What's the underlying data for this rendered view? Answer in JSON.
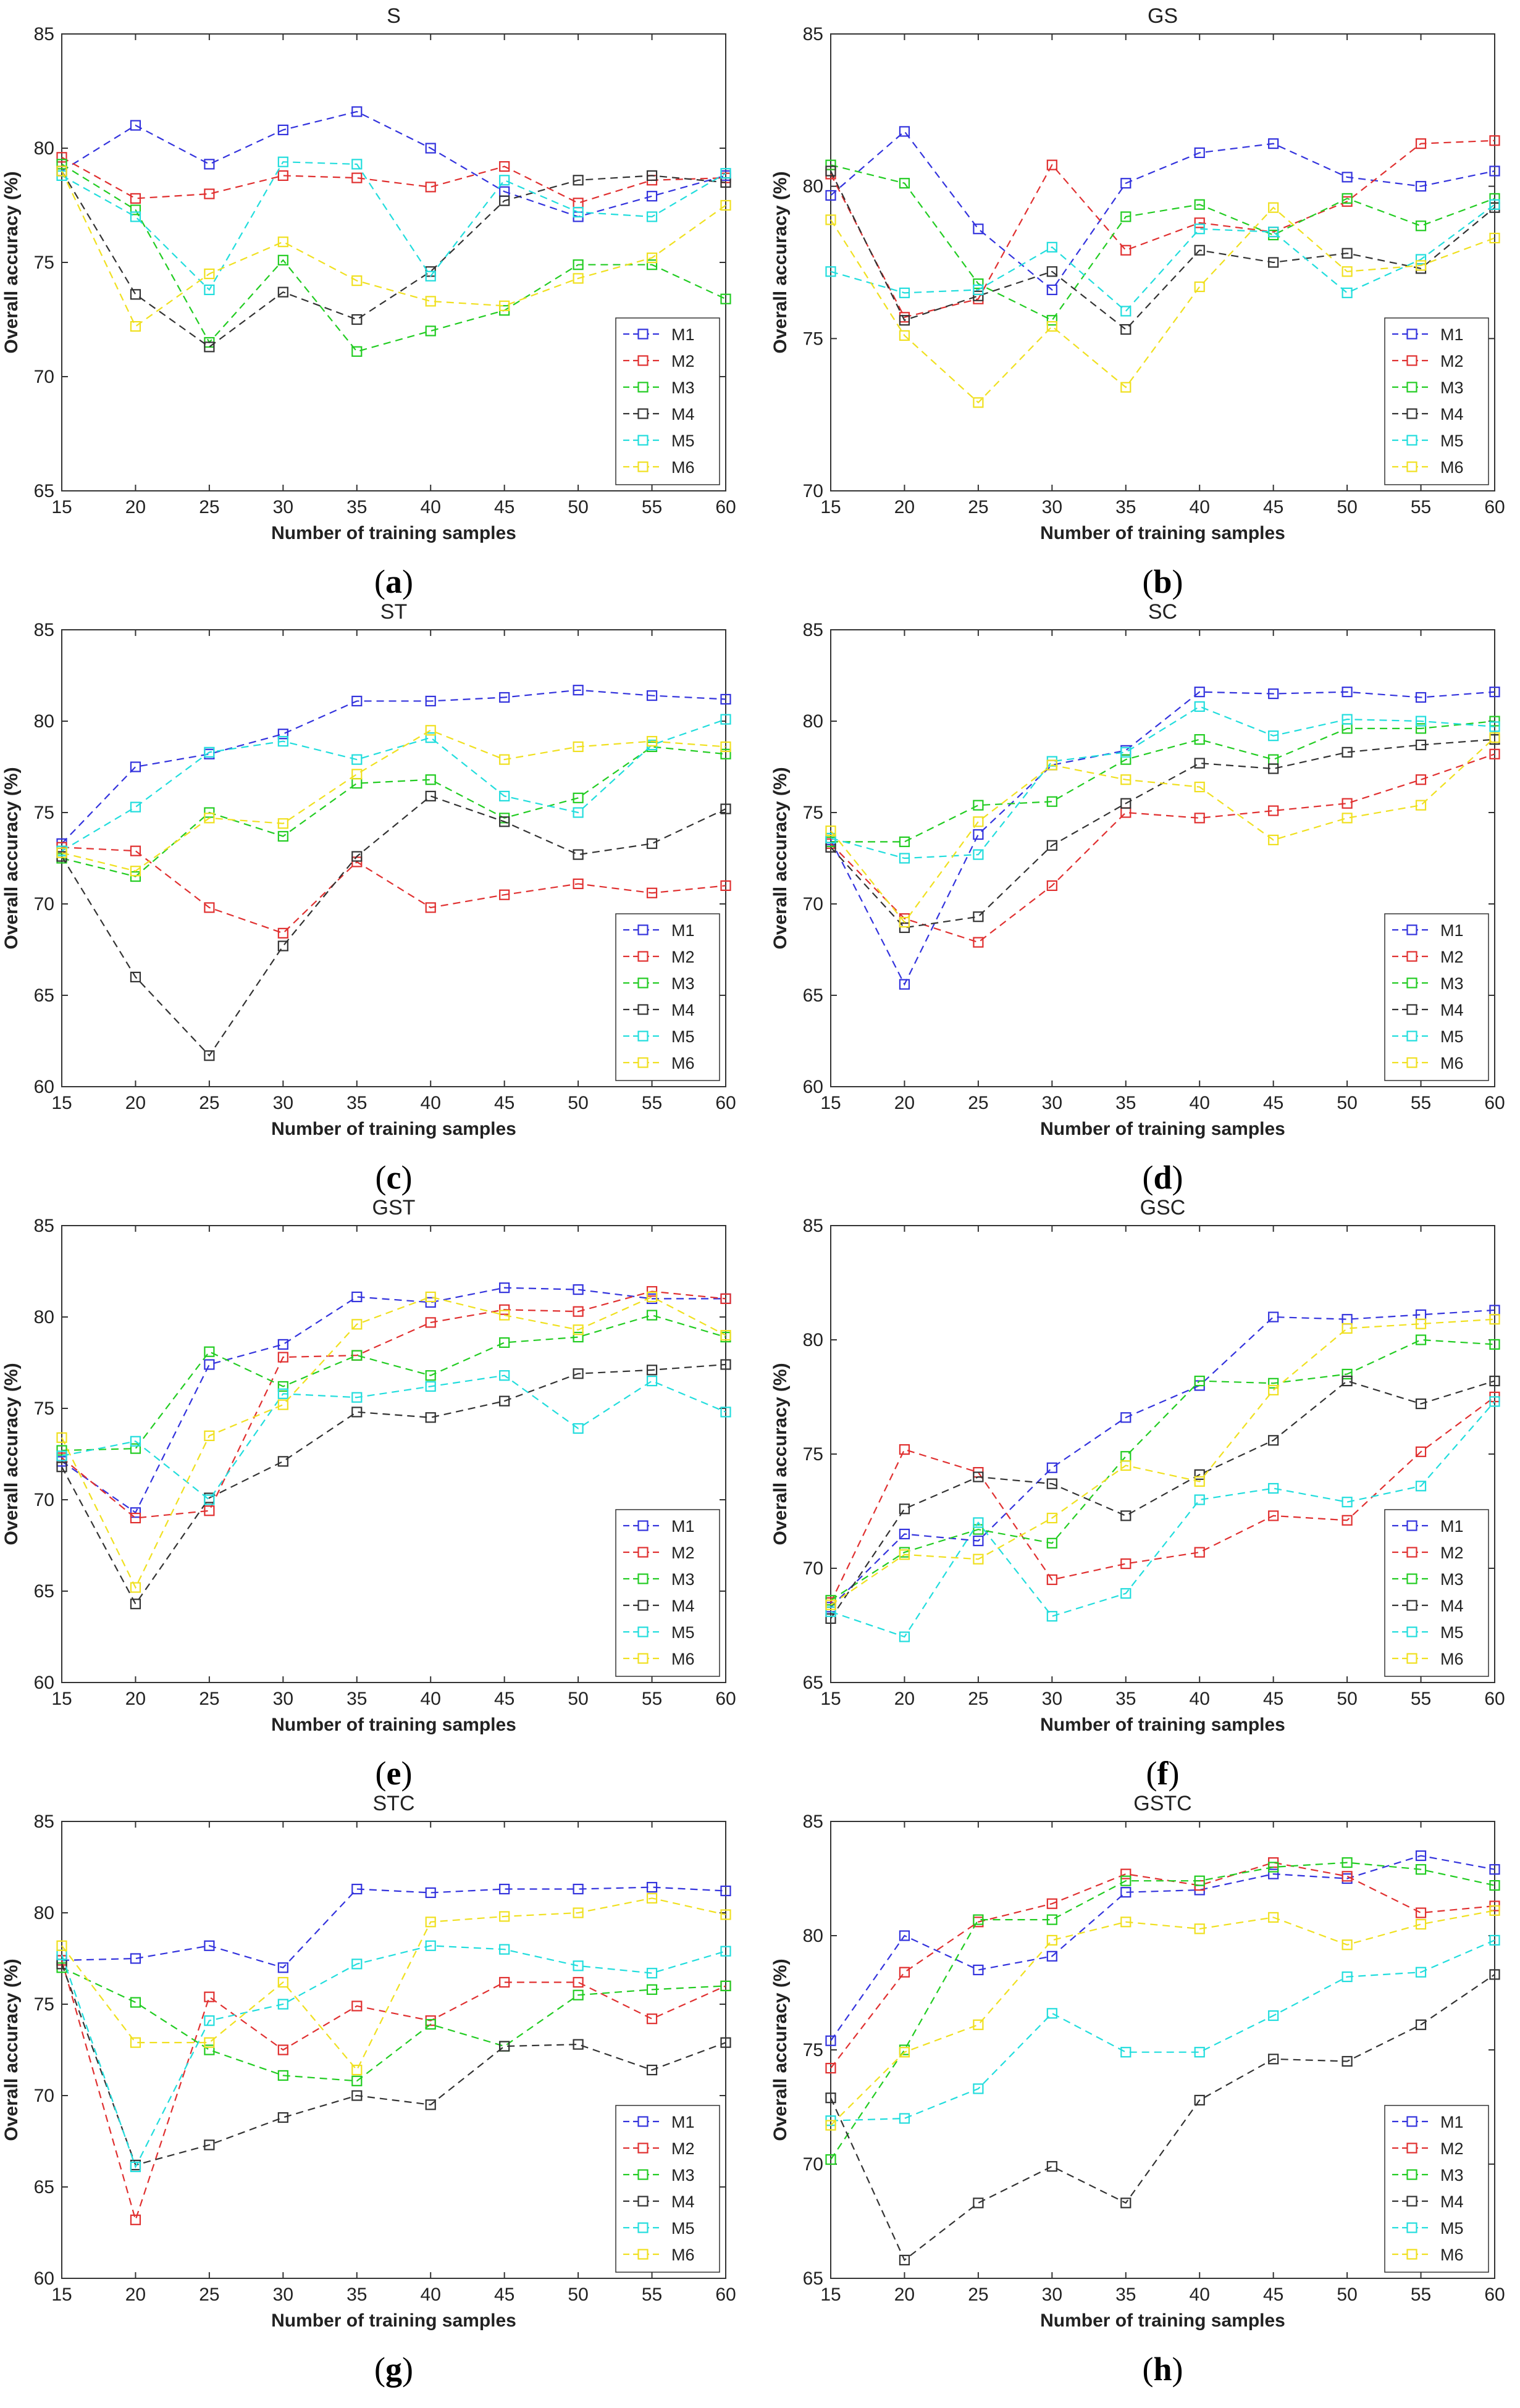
{
  "figure": {
    "xlabel": "Number of training samples",
    "ylabel": "Overall accuracy (%)"
  },
  "colors": {
    "M1": "#3333dd",
    "M2": "#e03030",
    "M3": "#22cc22",
    "M4": "#333333",
    "M5": "#22dddd",
    "M6": "#f0e020"
  },
  "chart_data": [
    {
      "type": "line",
      "panel_label": "a",
      "title": "S",
      "xlabel": "Number of training samples",
      "ylabel": "Overall accuracy (%)",
      "x": [
        15,
        20,
        25,
        30,
        35,
        40,
        45,
        50,
        55,
        60
      ],
      "xlim": [
        15,
        60
      ],
      "ylim": [
        65,
        85
      ],
      "yticks": [
        65,
        70,
        75,
        80,
        85
      ],
      "legend": "bottom-right",
      "series": [
        {
          "name": "M1",
          "values": [
            79.0,
            81.0,
            79.3,
            80.8,
            81.6,
            80.0,
            78.1,
            77.0,
            77.9,
            78.8
          ]
        },
        {
          "name": "M2",
          "values": [
            79.6,
            77.8,
            78.0,
            78.8,
            78.7,
            78.3,
            79.2,
            77.6,
            78.6,
            78.7
          ]
        },
        {
          "name": "M3",
          "values": [
            79.3,
            77.3,
            71.5,
            75.1,
            71.1,
            72.0,
            72.9,
            74.9,
            74.9,
            73.4
          ]
        },
        {
          "name": "M4",
          "values": [
            79.0,
            73.6,
            71.3,
            73.7,
            72.5,
            74.6,
            77.7,
            78.6,
            78.8,
            78.5
          ]
        },
        {
          "name": "M5",
          "values": [
            78.8,
            77.0,
            73.8,
            79.4,
            79.3,
            74.4,
            78.6,
            77.2,
            77.0,
            78.9
          ]
        },
        {
          "name": "M6",
          "values": [
            79.0,
            72.2,
            74.5,
            75.9,
            74.2,
            73.3,
            73.1,
            74.3,
            75.2,
            77.5
          ]
        }
      ]
    },
    {
      "type": "line",
      "panel_label": "b",
      "title": "GS",
      "xlabel": "Number of training samples",
      "ylabel": "Overall accuracy (%)",
      "x": [
        15,
        20,
        25,
        30,
        35,
        40,
        45,
        50,
        55,
        60
      ],
      "xlim": [
        15,
        60
      ],
      "ylim": [
        70,
        85
      ],
      "yticks": [
        70,
        75,
        80,
        85
      ],
      "legend": "bottom-right",
      "series": [
        {
          "name": "M1",
          "values": [
            79.7,
            81.8,
            78.6,
            76.6,
            80.1,
            81.1,
            81.4,
            80.3,
            80.0,
            80.5
          ]
        },
        {
          "name": "M2",
          "values": [
            80.4,
            75.7,
            76.3,
            80.7,
            77.9,
            78.8,
            78.5,
            79.5,
            81.4,
            81.5
          ]
        },
        {
          "name": "M3",
          "values": [
            80.7,
            80.1,
            76.8,
            75.6,
            79.0,
            79.4,
            78.4,
            79.6,
            78.7,
            79.6
          ]
        },
        {
          "name": "M4",
          "values": [
            80.5,
            75.6,
            76.4,
            77.2,
            75.3,
            77.9,
            77.5,
            77.8,
            77.3,
            79.3
          ]
        },
        {
          "name": "M5",
          "values": [
            77.2,
            76.5,
            76.6,
            78.0,
            75.9,
            78.6,
            78.5,
            76.5,
            77.6,
            79.4
          ]
        },
        {
          "name": "M6",
          "values": [
            78.9,
            75.1,
            72.9,
            75.4,
            73.4,
            76.7,
            79.3,
            77.2,
            77.4,
            78.3
          ]
        }
      ]
    },
    {
      "type": "line",
      "panel_label": "c",
      "title": "ST",
      "xlabel": "Number of training samples",
      "ylabel": "Overall accuracy (%)",
      "x": [
        15,
        20,
        25,
        30,
        35,
        40,
        45,
        50,
        55,
        60
      ],
      "xlim": [
        15,
        60
      ],
      "ylim": [
        60,
        85
      ],
      "yticks": [
        60,
        65,
        70,
        75,
        80,
        85
      ],
      "legend": "bottom-right",
      "series": [
        {
          "name": "M1",
          "values": [
            73.3,
            77.5,
            78.2,
            79.3,
            81.1,
            81.1,
            81.3,
            81.7,
            81.4,
            81.2
          ]
        },
        {
          "name": "M2",
          "values": [
            73.1,
            72.9,
            69.8,
            68.4,
            72.3,
            69.8,
            70.5,
            71.1,
            70.6,
            71.0
          ]
        },
        {
          "name": "M3",
          "values": [
            72.5,
            71.5,
            75.0,
            73.7,
            76.6,
            76.8,
            74.7,
            75.8,
            78.6,
            78.2
          ]
        },
        {
          "name": "M4",
          "values": [
            72.6,
            66.0,
            61.7,
            67.7,
            72.6,
            75.9,
            74.5,
            72.7,
            73.3,
            75.2
          ]
        },
        {
          "name": "M5",
          "values": [
            72.9,
            75.3,
            78.3,
            78.9,
            77.9,
            79.1,
            75.9,
            75.0,
            78.7,
            80.1
          ]
        },
        {
          "name": "M6",
          "values": [
            72.8,
            71.8,
            74.7,
            74.4,
            77.1,
            79.5,
            77.9,
            78.6,
            78.9,
            78.6
          ]
        }
      ]
    },
    {
      "type": "line",
      "panel_label": "d",
      "title": "SC",
      "xlabel": "Number of training samples",
      "ylabel": "Overall accuracy (%)",
      "x": [
        15,
        20,
        25,
        30,
        35,
        40,
        45,
        50,
        55,
        60
      ],
      "xlim": [
        15,
        60
      ],
      "ylim": [
        60,
        85
      ],
      "yticks": [
        60,
        65,
        70,
        75,
        80,
        85
      ],
      "legend": "bottom-right",
      "series": [
        {
          "name": "M1",
          "values": [
            73.5,
            65.6,
            73.8,
            77.6,
            78.4,
            81.6,
            81.5,
            81.6,
            81.3,
            81.6
          ]
        },
        {
          "name": "M2",
          "values": [
            73.3,
            69.2,
            67.9,
            71.0,
            75.0,
            74.7,
            75.1,
            75.5,
            76.8,
            78.2
          ]
        },
        {
          "name": "M3",
          "values": [
            73.4,
            73.4,
            75.4,
            75.6,
            77.9,
            79.0,
            77.9,
            79.6,
            79.6,
            80.0
          ]
        },
        {
          "name": "M4",
          "values": [
            73.1,
            68.7,
            69.3,
            73.2,
            75.5,
            77.7,
            77.4,
            78.3,
            78.7,
            79.0
          ]
        },
        {
          "name": "M5",
          "values": [
            73.6,
            72.5,
            72.7,
            77.8,
            78.3,
            80.8,
            79.2,
            80.1,
            80.0,
            79.7
          ]
        },
        {
          "name": "M6",
          "values": [
            74.0,
            69.0,
            74.5,
            77.6,
            76.8,
            76.4,
            73.5,
            74.7,
            75.4,
            79.1
          ]
        }
      ]
    },
    {
      "type": "line",
      "panel_label": "e",
      "title": "GST",
      "xlabel": "Number of training samples",
      "ylabel": "Overall accuracy (%)",
      "x": [
        15,
        20,
        25,
        30,
        35,
        40,
        45,
        50,
        55,
        60
      ],
      "xlim": [
        15,
        60
      ],
      "ylim": [
        60,
        85
      ],
      "yticks": [
        60,
        65,
        70,
        75,
        80,
        85
      ],
      "legend": "bottom-right",
      "series": [
        {
          "name": "M1",
          "values": [
            72.1,
            69.3,
            77.4,
            78.5,
            81.1,
            80.8,
            81.6,
            81.5,
            81.0,
            81.0
          ]
        },
        {
          "name": "M2",
          "values": [
            72.3,
            69.0,
            69.4,
            77.8,
            77.9,
            79.7,
            80.4,
            80.3,
            81.4,
            81.0
          ]
        },
        {
          "name": "M3",
          "values": [
            72.7,
            72.8,
            78.1,
            76.2,
            77.9,
            76.8,
            78.6,
            78.9,
            80.1,
            78.9
          ]
        },
        {
          "name": "M4",
          "values": [
            71.8,
            64.3,
            70.1,
            72.1,
            74.8,
            74.5,
            75.4,
            76.9,
            77.1,
            77.4
          ]
        },
        {
          "name": "M5",
          "values": [
            72.4,
            73.2,
            70.0,
            75.8,
            75.6,
            76.2,
            76.8,
            73.9,
            76.5,
            74.8
          ]
        },
        {
          "name": "M6",
          "values": [
            73.4,
            65.2,
            73.5,
            75.2,
            79.6,
            81.1,
            80.1,
            79.3,
            81.1,
            79.0
          ]
        }
      ]
    },
    {
      "type": "line",
      "panel_label": "f",
      "title": "GSC",
      "xlabel": "Number of training samples",
      "ylabel": "Overall accuracy (%)",
      "x": [
        15,
        20,
        25,
        30,
        35,
        40,
        45,
        50,
        55,
        60
      ],
      "xlim": [
        15,
        60
      ],
      "ylim": [
        65,
        85
      ],
      "yticks": [
        65,
        70,
        75,
        80,
        85
      ],
      "legend": "bottom-right",
      "series": [
        {
          "name": "M1",
          "values": [
            68.3,
            71.5,
            71.2,
            74.4,
            76.6,
            78.0,
            81.0,
            80.9,
            81.1,
            81.3
          ]
        },
        {
          "name": "M2",
          "values": [
            68.5,
            75.2,
            74.2,
            69.5,
            70.2,
            70.7,
            72.3,
            72.1,
            75.1,
            77.5
          ]
        },
        {
          "name": "M3",
          "values": [
            68.6,
            70.7,
            71.7,
            71.1,
            74.9,
            78.2,
            78.1,
            78.5,
            80.0,
            79.8
          ]
        },
        {
          "name": "M4",
          "values": [
            67.8,
            72.6,
            74.0,
            73.7,
            72.3,
            74.1,
            75.6,
            78.2,
            77.2,
            78.2
          ]
        },
        {
          "name": "M5",
          "values": [
            68.1,
            67.0,
            72.0,
            67.9,
            68.9,
            73.0,
            73.5,
            72.9,
            73.6,
            77.3
          ]
        },
        {
          "name": "M6",
          "values": [
            68.4,
            70.6,
            70.4,
            72.2,
            74.5,
            73.8,
            77.8,
            80.5,
            80.7,
            80.9
          ]
        }
      ]
    },
    {
      "type": "line",
      "panel_label": "g",
      "title": "STC",
      "xlabel": "Number of training samples",
      "ylabel": "Overall accuracy (%)",
      "x": [
        15,
        20,
        25,
        30,
        35,
        40,
        45,
        50,
        55,
        60
      ],
      "xlim": [
        15,
        60
      ],
      "ylim": [
        60,
        85
      ],
      "yticks": [
        60,
        65,
        70,
        75,
        80,
        85
      ],
      "legend": "bottom-right",
      "series": [
        {
          "name": "M1",
          "values": [
            77.4,
            77.5,
            78.2,
            77.0,
            81.3,
            81.1,
            81.3,
            81.3,
            81.4,
            81.2
          ]
        },
        {
          "name": "M2",
          "values": [
            77.4,
            63.2,
            75.4,
            72.5,
            74.9,
            74.1,
            76.2,
            76.2,
            74.2,
            76.0
          ]
        },
        {
          "name": "M3",
          "values": [
            77.0,
            75.1,
            72.5,
            71.1,
            70.8,
            73.9,
            72.7,
            75.5,
            75.8,
            76.0
          ]
        },
        {
          "name": "M4",
          "values": [
            77.2,
            66.2,
            67.3,
            68.8,
            70.0,
            69.5,
            72.7,
            72.8,
            71.4,
            72.9
          ]
        },
        {
          "name": "M5",
          "values": [
            77.7,
            66.1,
            74.1,
            75.0,
            77.2,
            78.2,
            78.0,
            77.1,
            76.7,
            77.9
          ]
        },
        {
          "name": "M6",
          "values": [
            78.2,
            72.9,
            72.9,
            76.2,
            71.4,
            79.5,
            79.8,
            80.0,
            80.8,
            79.9
          ]
        }
      ]
    },
    {
      "type": "line",
      "panel_label": "h",
      "title": "GSTC",
      "xlabel": "Number of training samples",
      "ylabel": "Overall accuracy (%)",
      "x": [
        15,
        20,
        25,
        30,
        35,
        40,
        45,
        50,
        55,
        60
      ],
      "xlim": [
        15,
        60
      ],
      "ylim": [
        65,
        85
      ],
      "yticks": [
        65,
        70,
        75,
        80,
        85
      ],
      "legend": "bottom-right",
      "series": [
        {
          "name": "M1",
          "values": [
            75.4,
            80.0,
            78.5,
            79.1,
            81.9,
            82.0,
            82.7,
            82.5,
            83.5,
            82.9
          ]
        },
        {
          "name": "M2",
          "values": [
            74.2,
            78.4,
            80.6,
            81.4,
            82.7,
            82.2,
            83.2,
            82.6,
            81.0,
            81.3
          ]
        },
        {
          "name": "M3",
          "values": [
            70.2,
            75.0,
            80.7,
            80.7,
            82.4,
            82.4,
            83.0,
            83.2,
            82.9,
            82.2
          ]
        },
        {
          "name": "M4",
          "values": [
            72.9,
            65.8,
            68.3,
            69.9,
            68.3,
            72.8,
            74.6,
            74.5,
            76.1,
            78.3
          ]
        },
        {
          "name": "M5",
          "values": [
            71.9,
            72.0,
            73.3,
            76.6,
            74.9,
            74.9,
            76.5,
            78.2,
            78.4,
            79.8
          ]
        },
        {
          "name": "M6",
          "values": [
            71.7,
            74.9,
            76.1,
            79.8,
            80.6,
            80.3,
            80.8,
            79.6,
            80.5,
            81.1
          ]
        }
      ]
    }
  ]
}
